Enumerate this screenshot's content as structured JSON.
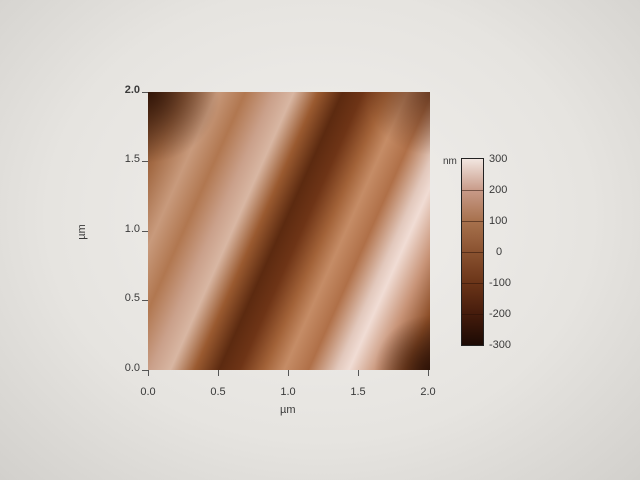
{
  "chart_data": {
    "type": "heatmap",
    "xlabel": "µm",
    "ylabel": "µm",
    "xlim": [
      0.0,
      2.0
    ],
    "ylim": [
      0.0,
      2.0
    ],
    "x_ticks": [
      "0.0",
      "0.5",
      "1.0",
      "1.5",
      "2.0"
    ],
    "y_ticks": [
      "0.0",
      "0.5",
      "1.0",
      "1.5",
      "2.0"
    ],
    "colorbar": {
      "unit": "nm",
      "range": [
        -300,
        300
      ],
      "ticks": [
        "300",
        "200",
        "100",
        "0",
        "-100",
        "-200",
        "-300"
      ],
      "colormap": [
        "#1c0a04",
        "#6a3418",
        "#a8724e",
        "#f2e6e0"
      ]
    }
  }
}
